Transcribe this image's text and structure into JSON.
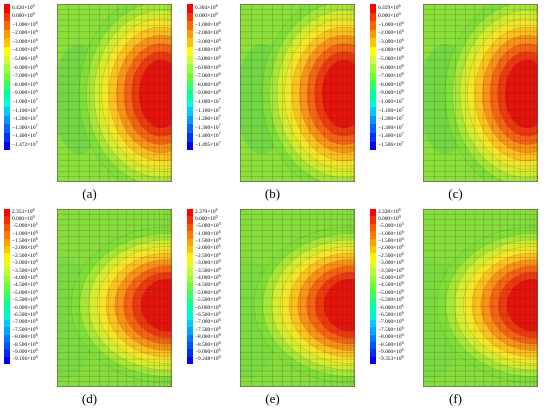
{
  "swatch_colors": [
    "#ff0000",
    "#ff3300",
    "#ff6600",
    "#ff9900",
    "#ffc400",
    "#ffff00",
    "#ccff33",
    "#99ff33",
    "#66ff33",
    "#33ff66",
    "#00ff99",
    "#00ffcc",
    "#00ccff",
    "#0099ff",
    "#0066ff",
    "#0033ff",
    "#0000ff"
  ],
  "panels": [
    {
      "caption": "(a)",
      "legend": [
        {
          "m": "6.420",
          "e": "6"
        },
        {
          "m": "0.000",
          "e": "0"
        },
        {
          "m": "−1.000",
          "e": "6"
        },
        {
          "m": "−2.000",
          "e": "6"
        },
        {
          "m": "−3.000",
          "e": "6"
        },
        {
          "m": "−4.000",
          "e": "6"
        },
        {
          "m": "−5.000",
          "e": "6"
        },
        {
          "m": "−6.000",
          "e": "6"
        },
        {
          "m": "−7.000",
          "e": "6"
        },
        {
          "m": "−8.000",
          "e": "6"
        },
        {
          "m": "−9.000",
          "e": "6"
        },
        {
          "m": "−1.000",
          "e": "7"
        },
        {
          "m": "−1.100",
          "e": "7"
        },
        {
          "m": "−1.200",
          "e": "7"
        },
        {
          "m": "−1.300",
          "e": "7"
        },
        {
          "m": "−1.400",
          "e": "7"
        },
        {
          "m": "−1.472",
          "e": "7"
        }
      ]
    },
    {
      "caption": "(b)",
      "legend": [
        {
          "m": "6.304",
          "e": "6"
        },
        {
          "m": "0.000",
          "e": "0"
        },
        {
          "m": "−1.000",
          "e": "6"
        },
        {
          "m": "−2.000",
          "e": "6"
        },
        {
          "m": "−3.000",
          "e": "6"
        },
        {
          "m": "−4.000",
          "e": "6"
        },
        {
          "m": "−5.000",
          "e": "6"
        },
        {
          "m": "−6.000",
          "e": "6"
        },
        {
          "m": "−7.000",
          "e": "6"
        },
        {
          "m": "−8.000",
          "e": "6"
        },
        {
          "m": "−9.000",
          "e": "6"
        },
        {
          "m": "−1.000",
          "e": "7"
        },
        {
          "m": "−1.100",
          "e": "7"
        },
        {
          "m": "−1.200",
          "e": "7"
        },
        {
          "m": "−1.300",
          "e": "7"
        },
        {
          "m": "−1.400",
          "e": "7"
        },
        {
          "m": "−1.495",
          "e": "7"
        }
      ]
    },
    {
      "caption": "(c)",
      "legend": [
        {
          "m": "6.359",
          "e": "6"
        },
        {
          "m": "0.000",
          "e": "0"
        },
        {
          "m": "−1.000",
          "e": "6"
        },
        {
          "m": "−2.000",
          "e": "6"
        },
        {
          "m": "−3.000",
          "e": "6"
        },
        {
          "m": "−4.000",
          "e": "6"
        },
        {
          "m": "−5.000",
          "e": "6"
        },
        {
          "m": "−6.000",
          "e": "6"
        },
        {
          "m": "−7.000",
          "e": "6"
        },
        {
          "m": "−8.000",
          "e": "6"
        },
        {
          "m": "−9.000",
          "e": "6"
        },
        {
          "m": "−1.000",
          "e": "7"
        },
        {
          "m": "−1.100",
          "e": "7"
        },
        {
          "m": "−1.200",
          "e": "7"
        },
        {
          "m": "−1.300",
          "e": "7"
        },
        {
          "m": "−1.400",
          "e": "7"
        },
        {
          "m": "−1.506",
          "e": "7"
        }
      ]
    },
    {
      "caption": "(d)",
      "legend": [
        {
          "m": "2.353",
          "e": "6"
        },
        {
          "m": "0.000",
          "e": "0"
        },
        {
          "m": "−5.000",
          "e": "5"
        },
        {
          "m": "−1.000",
          "e": "6"
        },
        {
          "m": "−1.500",
          "e": "6"
        },
        {
          "m": "−2.000",
          "e": "6"
        },
        {
          "m": "−2.500",
          "e": "6"
        },
        {
          "m": "−3.000",
          "e": "6"
        },
        {
          "m": "−3.500",
          "e": "6"
        },
        {
          "m": "−4.000",
          "e": "6"
        },
        {
          "m": "−4.500",
          "e": "6"
        },
        {
          "m": "−5.000",
          "e": "6"
        },
        {
          "m": "−5.500",
          "e": "6"
        },
        {
          "m": "−6.000",
          "e": "6"
        },
        {
          "m": "−6.500",
          "e": "6"
        },
        {
          "m": "−7.000",
          "e": "6"
        },
        {
          "m": "−7.500",
          "e": "6"
        },
        {
          "m": "−8.000",
          "e": "6"
        },
        {
          "m": "−8.500",
          "e": "6"
        },
        {
          "m": "−9.000",
          "e": "6"
        },
        {
          "m": "−9.106",
          "e": "6"
        }
      ]
    },
    {
      "caption": "(e)",
      "legend": [
        {
          "m": "2.379",
          "e": "6"
        },
        {
          "m": "0.000",
          "e": "0"
        },
        {
          "m": "−5.000",
          "e": "5"
        },
        {
          "m": "−1.000",
          "e": "6"
        },
        {
          "m": "−1.500",
          "e": "6"
        },
        {
          "m": "−2.000",
          "e": "6"
        },
        {
          "m": "−2.500",
          "e": "6"
        },
        {
          "m": "−3.000",
          "e": "6"
        },
        {
          "m": "−3.500",
          "e": "6"
        },
        {
          "m": "−4.000",
          "e": "6"
        },
        {
          "m": "−4.500",
          "e": "6"
        },
        {
          "m": "−5.000",
          "e": "6"
        },
        {
          "m": "−5.500",
          "e": "6"
        },
        {
          "m": "−6.000",
          "e": "6"
        },
        {
          "m": "−6.500",
          "e": "6"
        },
        {
          "m": "−7.000",
          "e": "6"
        },
        {
          "m": "−7.500",
          "e": "6"
        },
        {
          "m": "−8.000",
          "e": "6"
        },
        {
          "m": "−8.500",
          "e": "6"
        },
        {
          "m": "−9.000",
          "e": "6"
        },
        {
          "m": "−9.248",
          "e": "6"
        }
      ]
    },
    {
      "caption": "(f)",
      "legend": [
        {
          "m": "2.328",
          "e": "6"
        },
        {
          "m": "0.000",
          "e": "0"
        },
        {
          "m": "−5.000",
          "e": "5"
        },
        {
          "m": "−1.000",
          "e": "6"
        },
        {
          "m": "−1.500",
          "e": "6"
        },
        {
          "m": "−2.000",
          "e": "6"
        },
        {
          "m": "−2.500",
          "e": "6"
        },
        {
          "m": "−3.000",
          "e": "6"
        },
        {
          "m": "−3.500",
          "e": "6"
        },
        {
          "m": "−4.000",
          "e": "6"
        },
        {
          "m": "−4.500",
          "e": "6"
        },
        {
          "m": "−5.000",
          "e": "6"
        },
        {
          "m": "−5.500",
          "e": "6"
        },
        {
          "m": "−6.000",
          "e": "6"
        },
        {
          "m": "−6.500",
          "e": "6"
        },
        {
          "m": "−7.000",
          "e": "6"
        },
        {
          "m": "−7.500",
          "e": "6"
        },
        {
          "m": "−8.000",
          "e": "6"
        },
        {
          "m": "−8.500",
          "e": "6"
        },
        {
          "m": "−9.000",
          "e": "6"
        },
        {
          "m": "−9.353",
          "e": "6"
        }
      ]
    }
  ]
}
